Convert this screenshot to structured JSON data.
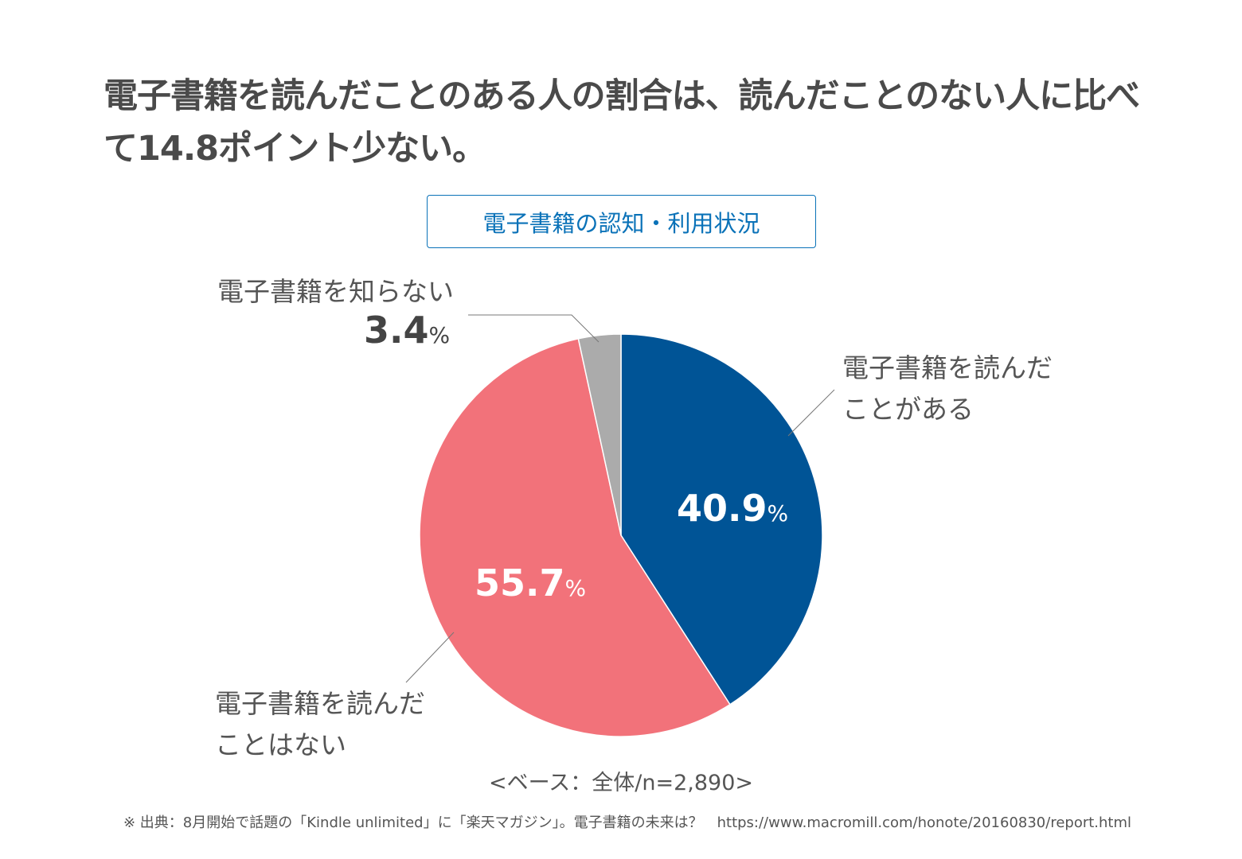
{
  "title": "電子書籍を読んだことのある人の割合は、読んだことのない人に比べて14.8ポイント少ない。",
  "chart_data": {
    "type": "pie",
    "title": "電子書籍の認知・利用状況",
    "slices": [
      {
        "label": "電子書籍を読んだことがある",
        "value": 40.9,
        "display": "40.9",
        "color": "#005496"
      },
      {
        "label": "電子書籍を読んだことはない",
        "value": 55.7,
        "display": "55.7",
        "color": "#f2727a"
      },
      {
        "label": "電子書籍を知らない",
        "value": 3.4,
        "display": "3.4",
        "color": "#ababab"
      }
    ],
    "label_lines": [
      "電子書籍を読んだ",
      "ことがある",
      "電子書籍を読んだ",
      "ことはない",
      "電子書籍を知らない"
    ],
    "unit": "%",
    "start": "12 o'clock, clockwise"
  },
  "base_note": "<ベース：全体/n=2,890>",
  "source": "※ 出典：8月開始で話題の「Kindle unlimited」に「楽天マガジン」。電子書籍の未来は？　https://www.macromill.com/honote/20160830/report.html"
}
